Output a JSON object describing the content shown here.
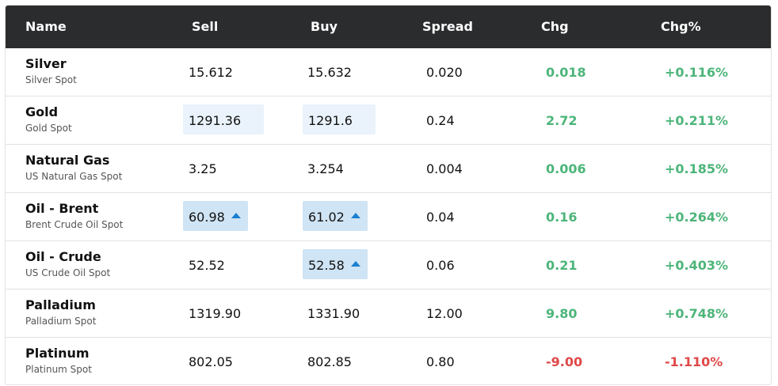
{
  "header": {
    "name": "Name",
    "sell": "Sell",
    "buy": "Buy",
    "spread": "Spread",
    "chg": "Chg",
    "chg_pct": "Chg%"
  },
  "rows": [
    {
      "name": "Silver",
      "sub": "Silver Spot",
      "sell": "15.612",
      "buy": "15.632",
      "spread": "0.020",
      "chg": "0.018",
      "chg_pct": "+0.116%"
    },
    {
      "name": "Gold",
      "sub": "Gold Spot",
      "sell": "1291.36",
      "buy": "1291.6",
      "spread": "0.24",
      "chg": "2.72",
      "chg_pct": "+0.211%"
    },
    {
      "name": "Natural Gas",
      "sub": "US Natural Gas Spot",
      "sell": "3.25",
      "buy": "3.254",
      "spread": "0.004",
      "chg": "0.006",
      "chg_pct": "+0.185%"
    },
    {
      "name": "Oil - Brent",
      "sub": "Brent Crude Oil Spot",
      "sell": "60.98",
      "buy": "61.02",
      "spread": "0.04",
      "chg": "0.16",
      "chg_pct": "+0.264%"
    },
    {
      "name": "Oil - Crude",
      "sub": "US Crude Oil Spot",
      "sell": "52.52",
      "buy": "52.58",
      "spread": "0.06",
      "chg": "0.21",
      "chg_pct": "+0.403%"
    },
    {
      "name": "Palladium",
      "sub": "Palladium Spot",
      "sell": "1319.90",
      "buy": "1331.90",
      "spread": "12.00",
      "chg": "9.80",
      "chg_pct": "+0.748%"
    },
    {
      "name": "Platinum",
      "sub": "Platinum Spot",
      "sell": "802.05",
      "buy": "802.85",
      "spread": "0.80",
      "chg": "-9.00",
      "chg_pct": "-1.110%"
    }
  ],
  "colors": {
    "header_bg": "#2b2c2e",
    "positive": "#4db57a",
    "negative": "#e04848",
    "highlight_light": "#eaf3fb",
    "highlight_blue": "#cfe4f4",
    "up_arrow": "#1a7fd0"
  },
  "icons": {
    "up": "arrow-up-icon"
  }
}
